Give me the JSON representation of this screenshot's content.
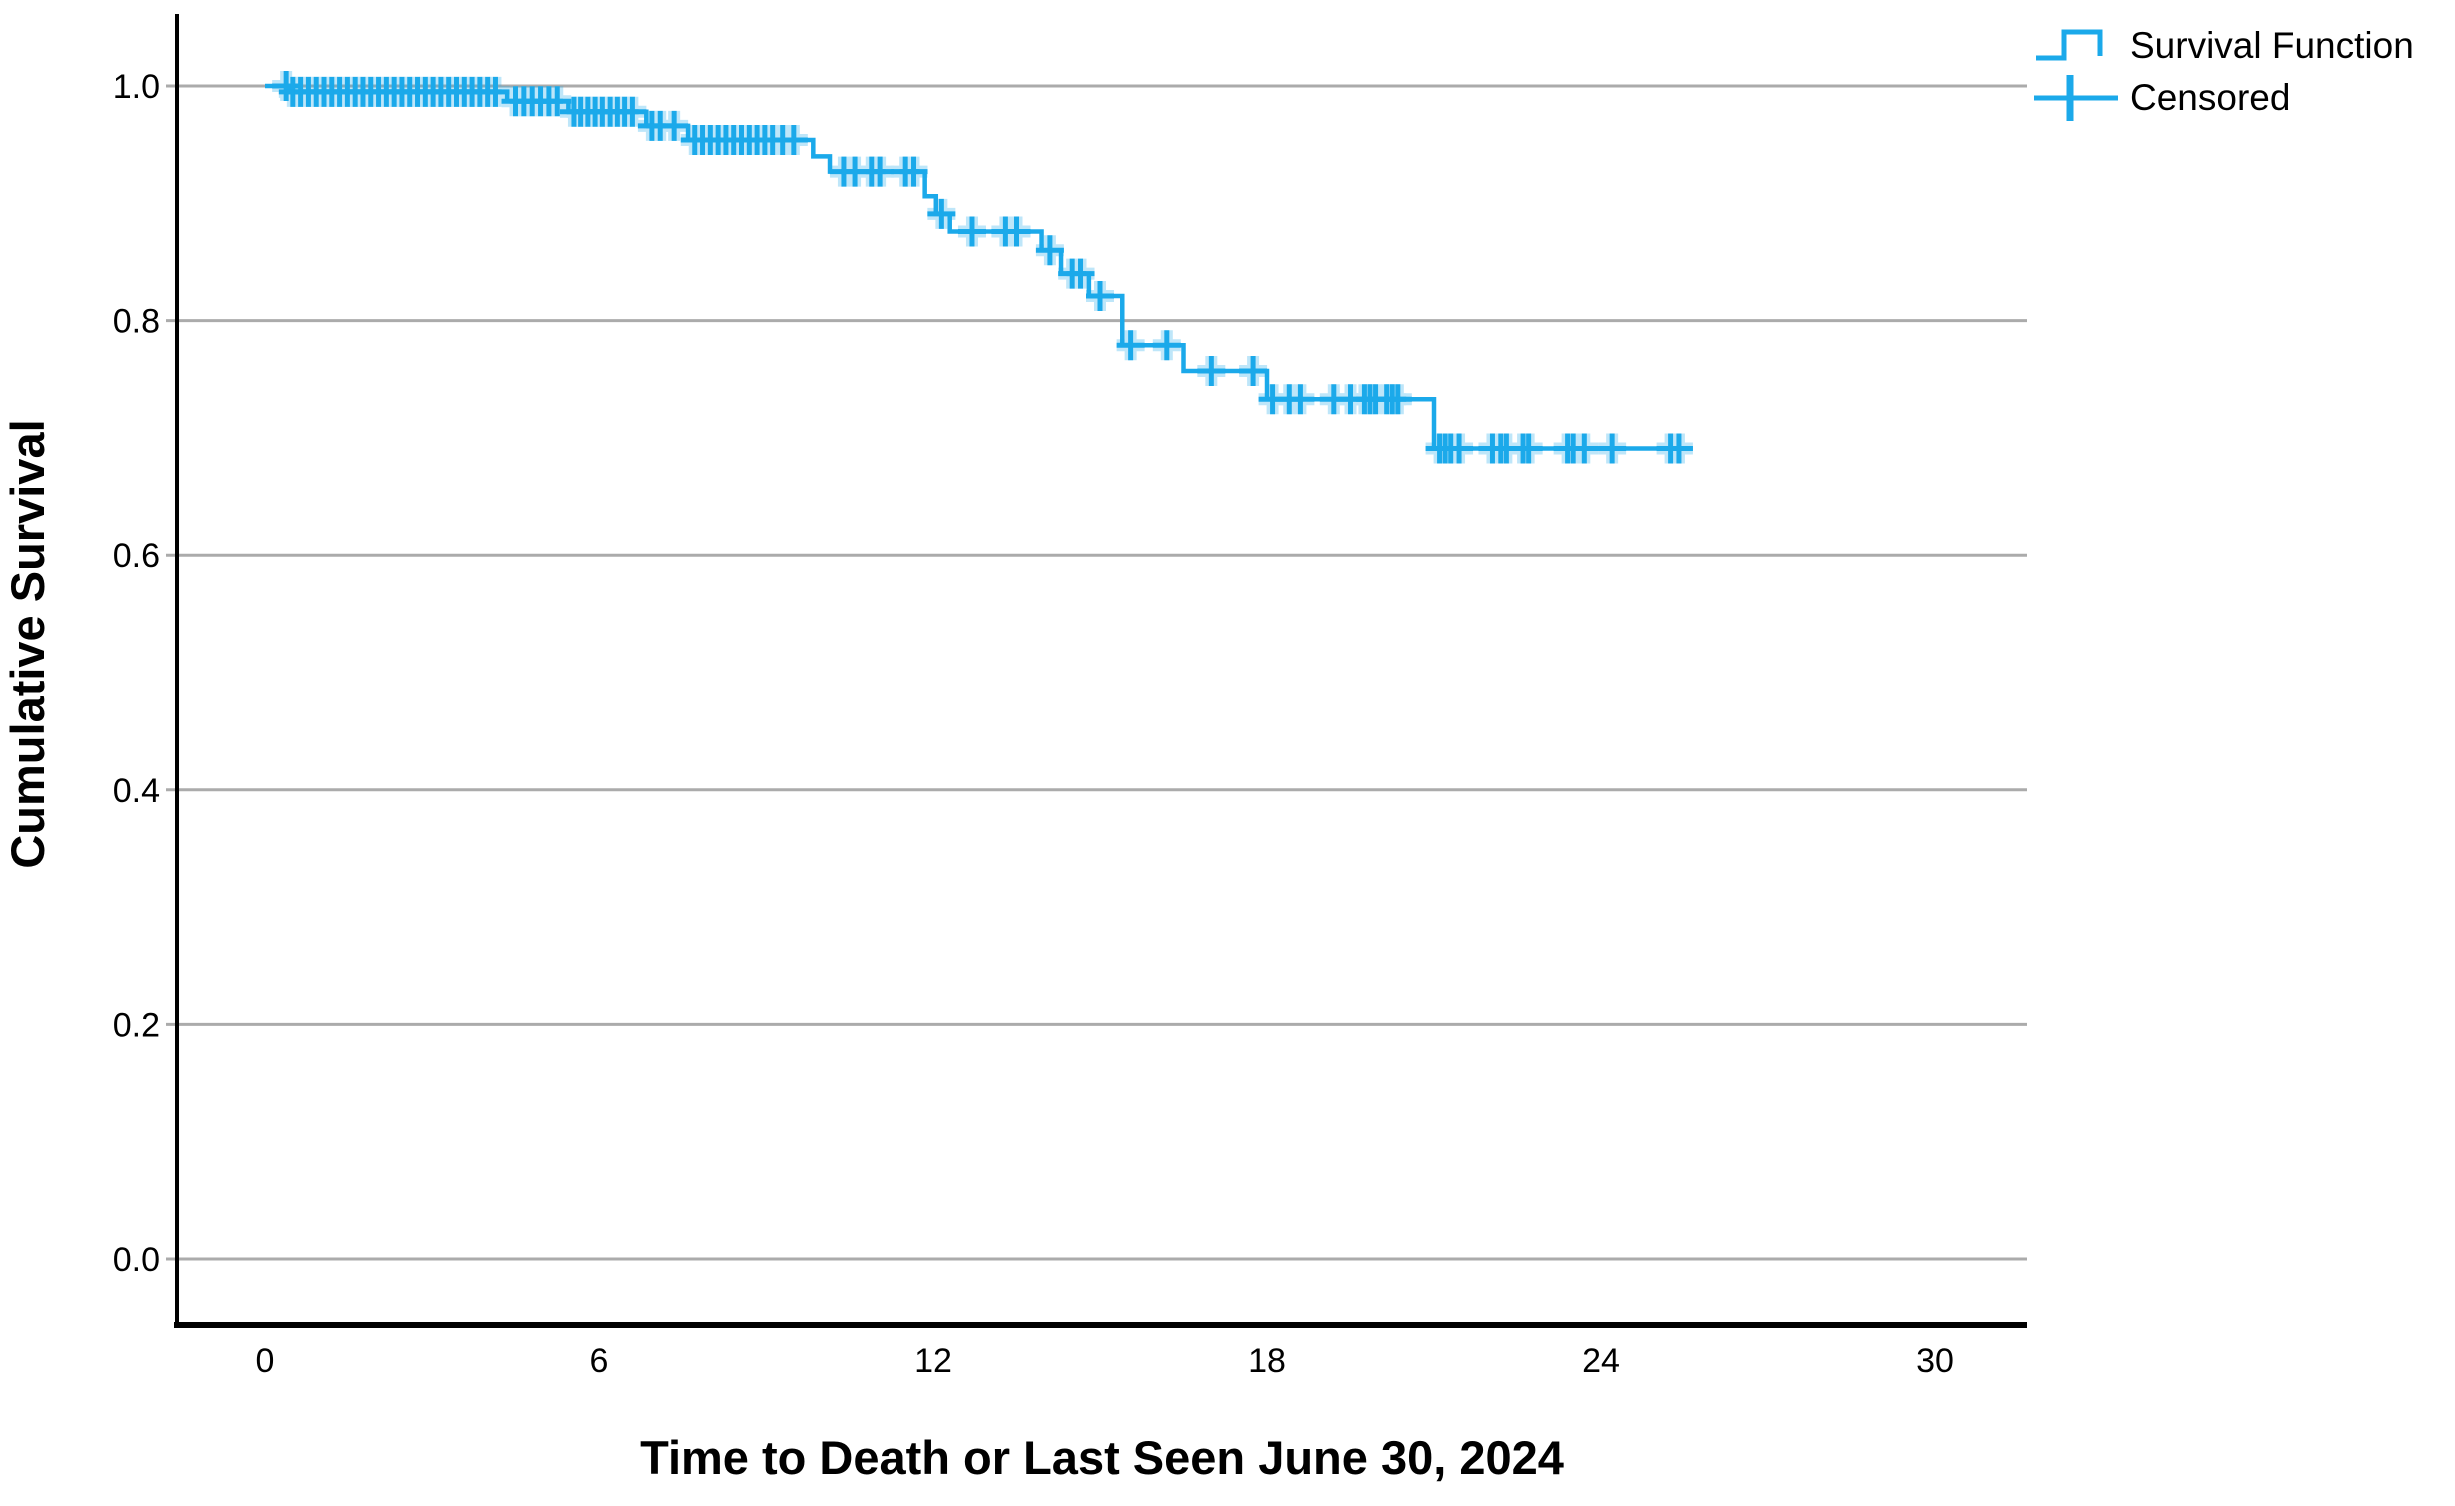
{
  "colors": {
    "accent": "#1BA9EA",
    "grid": "#ABABAB",
    "axis": "#000000",
    "text": "#000000"
  },
  "legend": {
    "items": [
      {
        "label": "Survival Function",
        "symbol": "step-line"
      },
      {
        "label": "Censored",
        "symbol": "plus"
      }
    ]
  },
  "chart_data": {
    "type": "line",
    "subtype": "kaplan-meier-step",
    "title": "",
    "xlabel": "Time to Death or Last Seen June 30, 2024",
    "ylabel": "Cumulative Survival",
    "xlim": [
      -1.6,
      31.7
    ],
    "ylim": [
      -0.056,
      1.066
    ],
    "xticks": [
      0,
      6,
      12,
      18,
      24,
      30
    ],
    "ytick_values": [
      0.0,
      0.2,
      0.4,
      0.6,
      0.8,
      1.0
    ],
    "ytick_labels": [
      "0.0",
      "0.2",
      "0.4",
      "0.6",
      "0.8",
      "1.0"
    ],
    "grid": "horizontal",
    "legend_position": "top-right",
    "series": [
      {
        "name": "Survival Function",
        "color": "#1BA9EA",
        "steps": [
          [
            0,
            1.0
          ],
          [
            0.45,
            0.995
          ],
          [
            4.35,
            0.987
          ],
          [
            5.45,
            0.978
          ],
          [
            6.85,
            0.966
          ],
          [
            7.6,
            0.954
          ],
          [
            9.85,
            0.94
          ],
          [
            10.15,
            0.927
          ],
          [
            11.85,
            0.906
          ],
          [
            12.05,
            0.891
          ],
          [
            12.3,
            0.876
          ],
          [
            13.95,
            0.86
          ],
          [
            14.3,
            0.84
          ],
          [
            14.8,
            0.821
          ],
          [
            15.4,
            0.779
          ],
          [
            16.5,
            0.757
          ],
          [
            18.0,
            0.733
          ],
          [
            21.0,
            0.691
          ]
        ],
        "end_time": 25.6
      }
    ],
    "censored": {
      "name": "Censored",
      "color": "#1BA9EA",
      "points": [
        [
          0.38,
          1.0
        ],
        [
          0.5,
          0.995
        ],
        [
          0.64,
          0.995
        ],
        [
          0.78,
          0.995
        ],
        [
          0.92,
          0.995
        ],
        [
          1.06,
          0.995
        ],
        [
          1.2,
          0.995
        ],
        [
          1.34,
          0.995
        ],
        [
          1.48,
          0.995
        ],
        [
          1.62,
          0.995
        ],
        [
          1.76,
          0.995
        ],
        [
          1.9,
          0.995
        ],
        [
          2.04,
          0.995
        ],
        [
          2.18,
          0.995
        ],
        [
          2.32,
          0.995
        ],
        [
          2.46,
          0.995
        ],
        [
          2.6,
          0.995
        ],
        [
          2.74,
          0.995
        ],
        [
          2.88,
          0.995
        ],
        [
          3.02,
          0.995
        ],
        [
          3.16,
          0.995
        ],
        [
          3.3,
          0.995
        ],
        [
          3.44,
          0.995
        ],
        [
          3.58,
          0.995
        ],
        [
          3.72,
          0.995
        ],
        [
          3.86,
          0.995
        ],
        [
          4.0,
          0.995
        ],
        [
          4.14,
          0.995
        ],
        [
          4.5,
          0.987
        ],
        [
          4.65,
          0.987
        ],
        [
          4.8,
          0.987
        ],
        [
          4.95,
          0.987
        ],
        [
          5.1,
          0.987
        ],
        [
          5.25,
          0.987
        ],
        [
          5.55,
          0.978
        ],
        [
          5.67,
          0.978
        ],
        [
          5.8,
          0.978
        ],
        [
          5.93,
          0.978
        ],
        [
          6.06,
          0.978
        ],
        [
          6.2,
          0.978
        ],
        [
          6.33,
          0.978
        ],
        [
          6.46,
          0.978
        ],
        [
          6.6,
          0.978
        ],
        [
          6.95,
          0.966
        ],
        [
          7.1,
          0.966
        ],
        [
          7.35,
          0.966
        ],
        [
          7.72,
          0.954
        ],
        [
          7.86,
          0.954
        ],
        [
          8.0,
          0.954
        ],
        [
          8.14,
          0.954
        ],
        [
          8.28,
          0.954
        ],
        [
          8.42,
          0.954
        ],
        [
          8.56,
          0.954
        ],
        [
          8.7,
          0.954
        ],
        [
          8.84,
          0.954
        ],
        [
          8.98,
          0.954
        ],
        [
          9.12,
          0.954
        ],
        [
          9.3,
          0.954
        ],
        [
          9.5,
          0.954
        ],
        [
          10.4,
          0.927
        ],
        [
          10.6,
          0.927
        ],
        [
          10.9,
          0.927
        ],
        [
          11.05,
          0.927
        ],
        [
          11.5,
          0.927
        ],
        [
          11.65,
          0.927
        ],
        [
          12.15,
          0.891
        ],
        [
          12.7,
          0.876
        ],
        [
          13.3,
          0.876
        ],
        [
          13.5,
          0.876
        ],
        [
          14.1,
          0.86
        ],
        [
          14.5,
          0.84
        ],
        [
          14.65,
          0.84
        ],
        [
          15.0,
          0.821
        ],
        [
          15.55,
          0.779
        ],
        [
          16.2,
          0.779
        ],
        [
          17.0,
          0.757
        ],
        [
          17.75,
          0.757
        ],
        [
          18.1,
          0.733
        ],
        [
          18.4,
          0.733
        ],
        [
          18.6,
          0.733
        ],
        [
          19.2,
          0.733
        ],
        [
          19.5,
          0.733
        ],
        [
          19.75,
          0.733
        ],
        [
          19.85,
          0.733
        ],
        [
          19.95,
          0.733
        ],
        [
          20.15,
          0.733
        ],
        [
          20.25,
          0.733
        ],
        [
          20.35,
          0.733
        ],
        [
          21.1,
          0.691
        ],
        [
          21.2,
          0.691
        ],
        [
          21.3,
          0.691
        ],
        [
          21.45,
          0.691
        ],
        [
          22.05,
          0.691
        ],
        [
          22.2,
          0.691
        ],
        [
          22.3,
          0.691
        ],
        [
          22.6,
          0.691
        ],
        [
          22.7,
          0.691
        ],
        [
          23.4,
          0.691
        ],
        [
          23.5,
          0.691
        ],
        [
          23.7,
          0.691
        ],
        [
          24.2,
          0.691
        ],
        [
          25.25,
          0.691
        ],
        [
          25.4,
          0.691
        ]
      ]
    }
  }
}
